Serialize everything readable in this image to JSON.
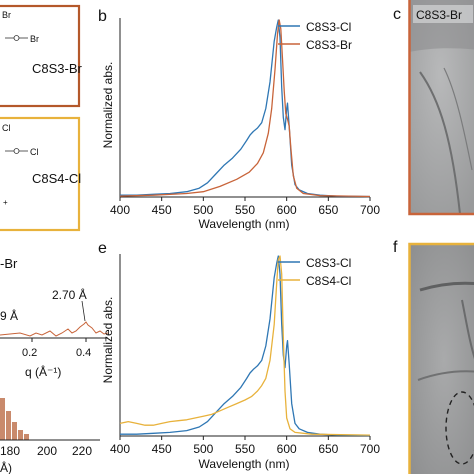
{
  "colors": {
    "blue": "#2f77b4",
    "orange": "#c8643a",
    "gold": "#e8b23c",
    "panel_gray": "#a9aaab"
  },
  "panel_a": {
    "frame_color": "#b4582a",
    "label_top": "C8S3-Br",
    "struct_text_top": "Br",
    "frame_color2": "#e8b23c",
    "label_bottom": "C8S4-Cl",
    "struct_text_bottom": "Cl"
  },
  "panel_d": {
    "title": "-Br",
    "annotations": [
      "9 Å",
      "2.70 Å"
    ],
    "q_ticks": [
      "0.2",
      "0.4"
    ],
    "q_label": "q (Å⁻¹)",
    "hist_ticks": [
      "180",
      "200",
      "220"
    ],
    "hist_axis_label": "Å)"
  },
  "panel_c": {
    "letter": "c",
    "inset_label": "C8S3-Br",
    "frame_color": "#c8643a"
  },
  "panel_f": {
    "letter": "f",
    "frame_color": "#e8b23c"
  },
  "chart_data": [
    {
      "panel": "b",
      "type": "line",
      "xlabel": "Wavelength (nm)",
      "ylabel": "Normalized abs.",
      "xlim": [
        400,
        700
      ],
      "xticks": [
        "400",
        "450",
        "500",
        "550",
        "600",
        "650",
        "700"
      ],
      "legend_position": "top-right",
      "series": [
        {
          "name": "C8S3-Cl",
          "color": "#2f77b4",
          "points": [
            [
              400,
              0.01
            ],
            [
              420,
              0.01
            ],
            [
              440,
              0.015
            ],
            [
              460,
              0.02
            ],
            [
              480,
              0.03
            ],
            [
              495,
              0.05
            ],
            [
              505,
              0.08
            ],
            [
              515,
              0.13
            ],
            [
              525,
              0.18
            ],
            [
              535,
              0.22
            ],
            [
              545,
              0.27
            ],
            [
              552,
              0.32
            ],
            [
              556,
              0.35
            ],
            [
              560,
              0.37
            ],
            [
              565,
              0.39
            ],
            [
              570,
              0.42
            ],
            [
              575,
              0.5
            ],
            [
              580,
              0.65
            ],
            [
              585,
              0.88
            ],
            [
              588,
              0.96
            ],
            [
              590,
              1.0
            ],
            [
              592,
              0.9
            ],
            [
              594,
              0.62
            ],
            [
              596,
              0.45
            ],
            [
              598,
              0.38
            ],
            [
              600,
              0.5
            ],
            [
              601,
              0.53
            ],
            [
              603,
              0.4
            ],
            [
              606,
              0.18
            ],
            [
              610,
              0.07
            ],
            [
              615,
              0.04
            ],
            [
              625,
              0.02
            ],
            [
              640,
              0.01
            ],
            [
              660,
              0.005
            ],
            [
              700,
              0.003
            ]
          ]
        },
        {
          "name": "C8S3-Br",
          "color": "#c8643a",
          "points": [
            [
              400,
              0.005
            ],
            [
              440,
              0.01
            ],
            [
              480,
              0.02
            ],
            [
              500,
              0.03
            ],
            [
              520,
              0.06
            ],
            [
              540,
              0.1
            ],
            [
              555,
              0.14
            ],
            [
              565,
              0.19
            ],
            [
              572,
              0.25
            ],
            [
              578,
              0.36
            ],
            [
              582,
              0.5
            ],
            [
              586,
              0.72
            ],
            [
              589,
              0.92
            ],
            [
              591,
              1.0
            ],
            [
              593,
              0.95
            ],
            [
              595,
              0.78
            ],
            [
              597,
              0.6
            ],
            [
              599,
              0.47
            ],
            [
              601,
              0.44
            ],
            [
              603,
              0.4
            ],
            [
              605,
              0.28
            ],
            [
              608,
              0.12
            ],
            [
              612,
              0.05
            ],
            [
              620,
              0.02
            ],
            [
              640,
              0.008
            ],
            [
              700,
              0.003
            ]
          ]
        }
      ]
    },
    {
      "panel": "e",
      "type": "line",
      "xlabel": "Wavelength (nm)",
      "ylabel": "Normalized abs.",
      "xlim": [
        400,
        700
      ],
      "xticks": [
        "400",
        "450",
        "500",
        "550",
        "600",
        "650",
        "700"
      ],
      "legend_position": "top-right",
      "series": [
        {
          "name": "C8S3-Cl",
          "color": "#2f77b4",
          "points": [
            [
              400,
              0.01
            ],
            [
              420,
              0.01
            ],
            [
              440,
              0.015
            ],
            [
              460,
              0.02
            ],
            [
              480,
              0.03
            ],
            [
              495,
              0.05
            ],
            [
              505,
              0.08
            ],
            [
              515,
              0.13
            ],
            [
              525,
              0.18
            ],
            [
              535,
              0.22
            ],
            [
              545,
              0.27
            ],
            [
              552,
              0.32
            ],
            [
              556,
              0.35
            ],
            [
              560,
              0.37
            ],
            [
              565,
              0.39
            ],
            [
              570,
              0.42
            ],
            [
              575,
              0.5
            ],
            [
              580,
              0.65
            ],
            [
              585,
              0.88
            ],
            [
              588,
              0.96
            ],
            [
              590,
              1.0
            ],
            [
              592,
              0.9
            ],
            [
              594,
              0.62
            ],
            [
              596,
              0.45
            ],
            [
              598,
              0.38
            ],
            [
              600,
              0.5
            ],
            [
              601,
              0.53
            ],
            [
              603,
              0.4
            ],
            [
              606,
              0.18
            ],
            [
              610,
              0.07
            ],
            [
              615,
              0.04
            ],
            [
              625,
              0.02
            ],
            [
              640,
              0.01
            ],
            [
              660,
              0.005
            ],
            [
              700,
              0.003
            ]
          ]
        },
        {
          "name": "C8S4-Cl",
          "color": "#e8b23c",
          "points": [
            [
              400,
              0.07
            ],
            [
              410,
              0.08
            ],
            [
              420,
              0.07
            ],
            [
              430,
              0.06
            ],
            [
              440,
              0.06
            ],
            [
              450,
              0.07
            ],
            [
              460,
              0.08
            ],
            [
              470,
              0.085
            ],
            [
              480,
              0.09
            ],
            [
              490,
              0.1
            ],
            [
              500,
              0.11
            ],
            [
              510,
              0.12
            ],
            [
              520,
              0.14
            ],
            [
              530,
              0.16
            ],
            [
              540,
              0.18
            ],
            [
              550,
              0.2
            ],
            [
              558,
              0.22
            ],
            [
              565,
              0.25
            ],
            [
              570,
              0.28
            ],
            [
              575,
              0.32
            ],
            [
              580,
              0.42
            ],
            [
              585,
              0.62
            ],
            [
              588,
              0.85
            ],
            [
              590,
              0.98
            ],
            [
              592,
              1.0
            ],
            [
              594,
              0.9
            ],
            [
              596,
              0.55
            ],
            [
              598,
              0.25
            ],
            [
              600,
              0.1
            ],
            [
              604,
              0.04
            ],
            [
              610,
              0.02
            ],
            [
              630,
              0.01
            ],
            [
              700,
              0.005
            ]
          ]
        }
      ]
    }
  ]
}
